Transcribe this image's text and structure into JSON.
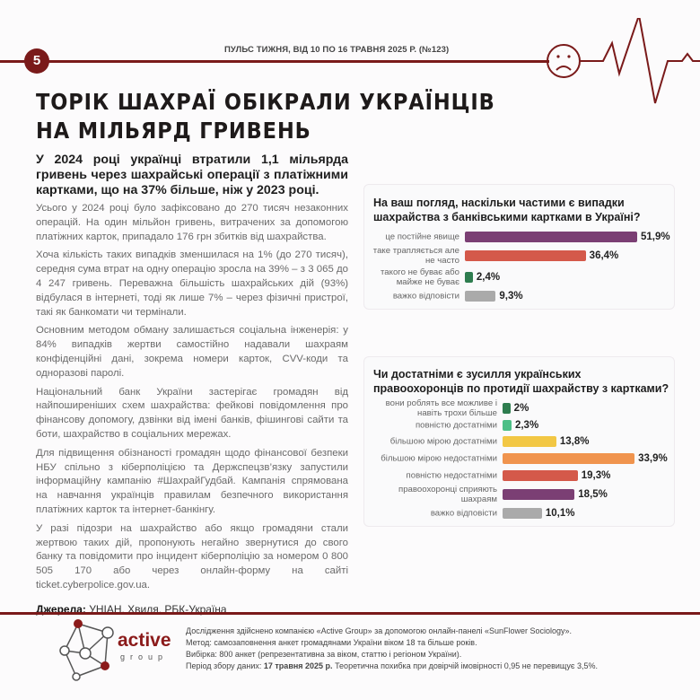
{
  "header": {
    "page_number": "5",
    "issue": "ПУЛЬС ТИЖНЯ, ВІД 10 ПО 16 ТРАВНЯ 2025 Р. (№123)",
    "icon": "sad-face-icon",
    "accent": "#7a1a1a"
  },
  "title": {
    "line1": "ТОРІК ШАХРАЇ ОБІКРАЛИ УКРАЇНЦІВ",
    "line2": "НА МІЛЬЯРД ГРИВЕНЬ"
  },
  "lead": "У 2024 році українці втратили 1,1 мільярда гривень через шахрайські операції з платіжними картками, що на 37% більше, ніж у 2023 році.",
  "paragraphs": [
    "Усього у 2024 році було зафіксовано до 270 тисяч незаконних операцій. На один мільйон гривень, витрачених за допомогою платіжних карток, припадало 176 грн збитків від шахрайства.",
    "Хоча кількість таких випадків зменшилася на 1% (до 270 тисяч), середня сума втрат на одну операцію зросла на 39% – з 3 065 до 4 247 гривень. Переважна більшість шахрайських дій (93%) відбулася в інтернеті, тоді як лише 7% – через фізичні пристрої, такі як банкомати чи термінали.",
    "Основним методом обману залишається соціальна інженерія: у 84% випадків жертви самостійно надавали шахраям конфіденційні дані, зокрема номери карток, CVV-коди та одноразові паролі.",
    "Національний банк України застерігає громадян від найпоширеніших схем шахрайства: фейкові повідомлення про фінансову допомогу, дзвінки від імені банків, фішингові сайти та боти, шахрайство в соціальних мережах.",
    "Для підвищення обізнаності громадян щодо фінансової безпеки НБУ спільно з кіберполіцією та Держспецзв’язку запустили інформаційну кампанію #ШахрайГудбай. Кампанія спрямована на навчання українців правилам безпечного використання платіжних карток та інтернет-банкінгу.",
    "У разі підозри на шахрайство або якщо громадяни стали жертвою таких дій, пропонують негайно звернутися до свого банку та повідомити про інцидент кіберполіцію за номером 0 800 505 170 або через онлайн-форму на сайті ticket.cyberpolice.gov.ua."
  ],
  "sources": {
    "label": "Джерела:",
    "text": " УНІАН, Хвиля, РБК-Україна"
  },
  "chart_data": [
    {
      "type": "bar",
      "title": "На ваш погляд, наскільки частими є випадки шахрайства з банківськими картками в Україні?",
      "categories": [
        "це постійне явище",
        "таке трапляється але не часто",
        "такого не буває або майже не буває",
        "важко відповісти"
      ],
      "values": [
        51.9,
        36.4,
        2.4,
        9.3
      ],
      "labels": [
        "51,9%",
        "36,4%",
        "2,4%",
        "9,3%"
      ],
      "colors": [
        "#7b3f74",
        "#d4594a",
        "#2e7d4f",
        "#aaaaaa"
      ]
    },
    {
      "type": "bar",
      "title": "Чи достатніми є зусилля українських правоохоронців по протидії шахрайству з картками?",
      "categories": [
        "вони роблять все можливе і навіть трохи більше",
        "повністю достатніми",
        "більшою мірою достатніми",
        "більшою мірою недостатніми",
        "повністю недостатніми",
        "правоохоронці сприяють шахраям",
        "важко відповісти"
      ],
      "values": [
        2,
        2.3,
        13.8,
        33.9,
        19.3,
        18.5,
        10.1
      ],
      "labels": [
        "2%",
        "2,3%",
        "13,8%",
        "33,9%",
        "19,3%",
        "18,5%",
        "10,1%"
      ],
      "colors": [
        "#2e7d4f",
        "#4cbf87",
        "#f2c744",
        "#f0944e",
        "#d4594a",
        "#7b3f74",
        "#aaaaaa"
      ]
    }
  ],
  "footer": {
    "logo_text": "active",
    "logo_sub": "group",
    "line1": "Дослідження здійснено компанією «Active Group» за допомогою онлайн-панелі «SunFlower Sociology».",
    "line2": "Метод: самозаповнення анкет громадянами України віком 18 та більше років.",
    "line3": "Вибірка: 800 анкет (репрезентативна за віком, статтю і регіоном України).",
    "line4_label": "Період збору даних: ",
    "line4_bold": "17 травня 2025 р.",
    "line4_rest": " Теоретична похибка при довірчій імовірності 0,95 не перевищує 3,5%."
  }
}
